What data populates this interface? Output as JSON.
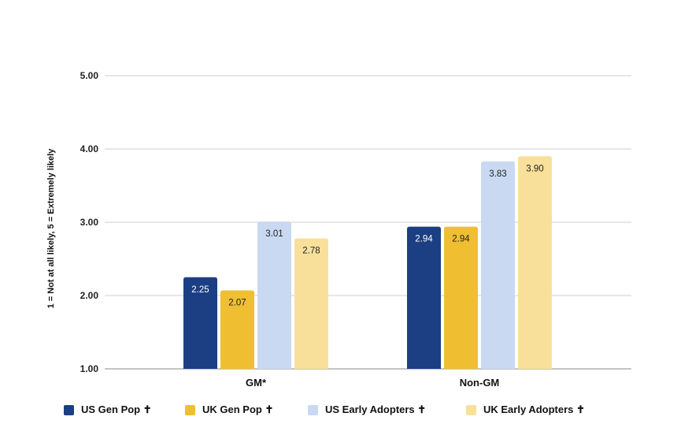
{
  "chart_data": {
    "type": "bar",
    "title": "",
    "xlabel": "",
    "ylabel": "1 = Not at all likely, 5 = Extremely likely",
    "ylim": [
      1,
      5
    ],
    "yticks": [
      1,
      2,
      3,
      4,
      5
    ],
    "ytick_labels": [
      "1.00",
      "2.00",
      "3.00",
      "4.00",
      "5.00"
    ],
    "grid": true,
    "legend_position": "bottom",
    "categories": [
      "GM*",
      "Non-GM"
    ],
    "series": [
      {
        "name": "US Gen Pop ✝",
        "color": "#1c3f83",
        "label_color": "#ffffff",
        "values": [
          2.25,
          2.94
        ],
        "value_labels": [
          "2.25",
          "2.94"
        ]
      },
      {
        "name": "UK Gen Pop ✝",
        "color": "#efbf31",
        "label_color": "#222222",
        "values": [
          2.07,
          2.94
        ],
        "value_labels": [
          "2.07",
          "2.94"
        ]
      },
      {
        "name": "US Early Adopters ✝",
        "color": "#c9d9f2",
        "label_color": "#222222",
        "values": [
          3.01,
          3.83
        ],
        "value_labels": [
          "3.01",
          "3.83"
        ]
      },
      {
        "name": "UK Early Adopters ✝",
        "color": "#f9e09a",
        "label_color": "#222222",
        "values": [
          2.78,
          3.9
        ],
        "value_labels": [
          "2.78",
          "3.90"
        ]
      }
    ]
  }
}
